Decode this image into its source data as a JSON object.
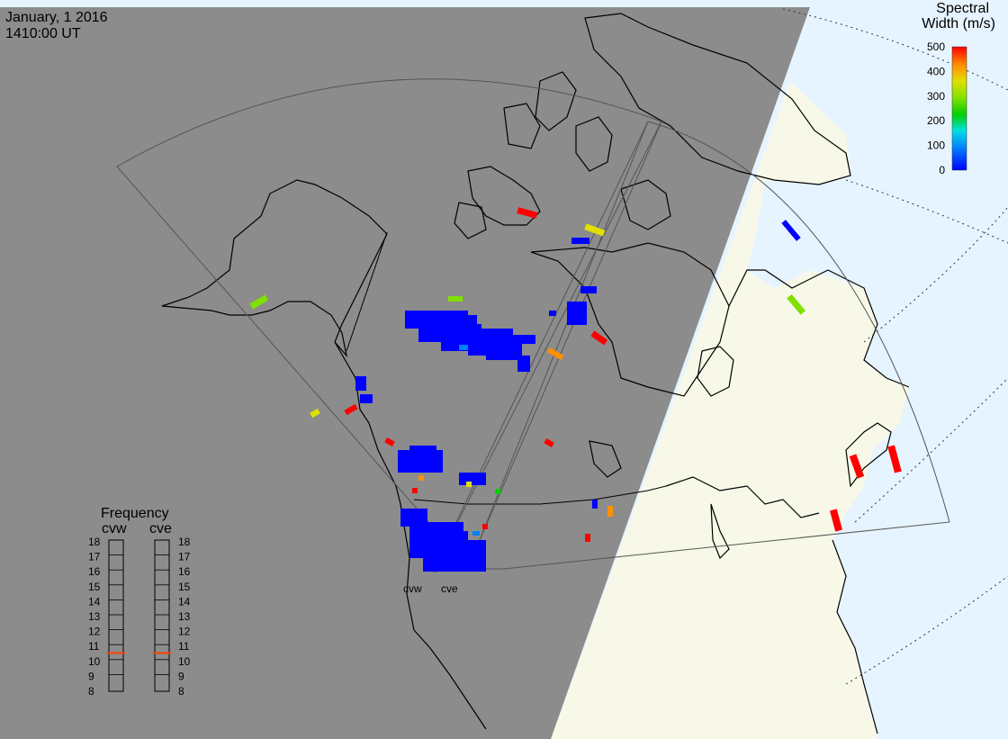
{
  "header": {
    "date": "January, 1 2016",
    "time": "1410:00 UT"
  },
  "colorbar": {
    "title_line1": "Spectral",
    "title_line2": "Width (m/s)",
    "ticks": [
      "500",
      "400",
      "300",
      "200",
      "100",
      "0"
    ],
    "min": 0,
    "max": 500,
    "colors": [
      "#0000ff",
      "#0080ff",
      "#00e0e0",
      "#00d000",
      "#80e000",
      "#e0e000",
      "#ff9000",
      "#ff0000"
    ]
  },
  "frequency": {
    "title": "Frequency",
    "radars": [
      {
        "name": "cvw",
        "current_mhz": 10.5
      },
      {
        "name": "cve",
        "current_mhz": 10.5
      }
    ],
    "scale_labels": [
      "18",
      "17",
      "16",
      "15",
      "14",
      "13",
      "12",
      "11",
      "10",
      "9",
      "8"
    ],
    "indicator_color": "#ff4000"
  },
  "radar_site": {
    "labels": [
      "cvw",
      "cve"
    ]
  },
  "map_colors": {
    "night": "#8c8c8c",
    "day_land": "#f8f8e8",
    "day_ocean": "#e6f4ff",
    "coast": "#000000"
  }
}
